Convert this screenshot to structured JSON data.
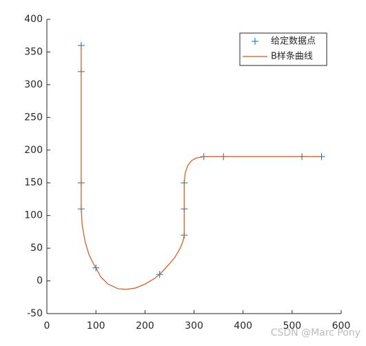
{
  "chart_data": {
    "type": "line",
    "xlim": [
      0,
      600
    ],
    "xticks": [
      0,
      100,
      200,
      300,
      400,
      500,
      600
    ],
    "ylim": [
      -50,
      400
    ],
    "yticks": [
      -50,
      0,
      50,
      100,
      150,
      200,
      250,
      300,
      350,
      400
    ],
    "legend": "top-right",
    "series": [
      {
        "name": "给定数据点",
        "color": "#0072bd",
        "style": "markers",
        "x": [
          70,
          70,
          70,
          70,
          100,
          230,
          280,
          280,
          280,
          320,
          360,
          520,
          560
        ],
        "values": [
          360,
          320,
          150,
          110,
          20,
          10,
          70,
          110,
          150,
          190,
          190,
          190,
          190
        ]
      },
      {
        "name": "B样条曲线",
        "color": "#d95319",
        "style": "line",
        "x": [
          70,
          70,
          70,
          70,
          72,
          78,
          86,
          95,
          100,
          110,
          125,
          145,
          162,
          180,
          200,
          220,
          230,
          245,
          260,
          272,
          278,
          280,
          280,
          280,
          282,
          287,
          295,
          305,
          320,
          360,
          520,
          560
        ],
        "values": [
          360,
          320,
          150,
          110,
          85,
          60,
          40,
          26,
          20,
          6,
          -5,
          -12,
          -13,
          -11,
          -5,
          4,
          10,
          22,
          35,
          50,
          62,
          70,
          110,
          150,
          165,
          176,
          184,
          188,
          190,
          190,
          190,
          190
        ]
      }
    ],
    "watermark": "CSDN @Marc Pony"
  }
}
